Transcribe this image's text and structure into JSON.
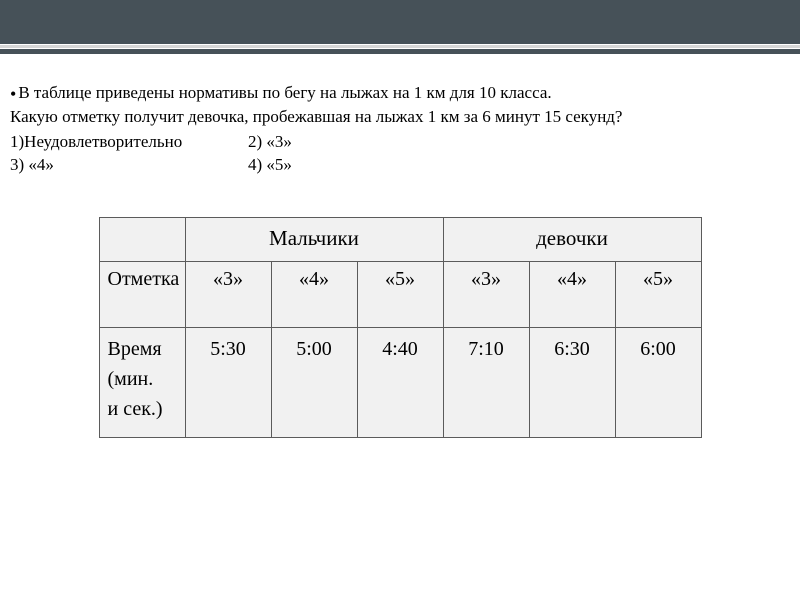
{
  "banner": {
    "bg_color": "#465158",
    "stripe_color": "#d6d6d6"
  },
  "question": {
    "line1": "В таблице приведены нормативы по бегу на лыжах на 1 км для 10 класса.",
    "line2": "Какую отметку получит девочка, пробежавшая на лыжах 1 км за 6 минут 15 секунд?",
    "options": {
      "o1": "1)Неудовлетворительно",
      "o2": "2) «3»",
      "o3": "3) «4»",
      "o4": "4) «5»"
    }
  },
  "table": {
    "group_boys": "Мальчики",
    "group_girls": "девочки",
    "row_grade_label": "Отметка",
    "row_time_label_l1": "Время",
    "row_time_label_l2": "(мин.",
    "row_time_label_l3": "и сек.)",
    "grades": {
      "b3": "«3»",
      "b4": "«4»",
      "b5": "«5»",
      "g3": "«3»",
      "g4": "«4»",
      "g5": "«5»"
    },
    "times": {
      "b3": "5:30",
      "b4": "5:00",
      "b5": "4:40",
      "g3": "7:10",
      "g4": "6:30",
      "g5": "6:00"
    },
    "style": {
      "cell_bg": "#f1f1f1",
      "border_color": "#5b5b5b",
      "font_size_body": 20,
      "font_size_header": 21,
      "col_label_width": 86,
      "col_val_width": 86
    }
  }
}
